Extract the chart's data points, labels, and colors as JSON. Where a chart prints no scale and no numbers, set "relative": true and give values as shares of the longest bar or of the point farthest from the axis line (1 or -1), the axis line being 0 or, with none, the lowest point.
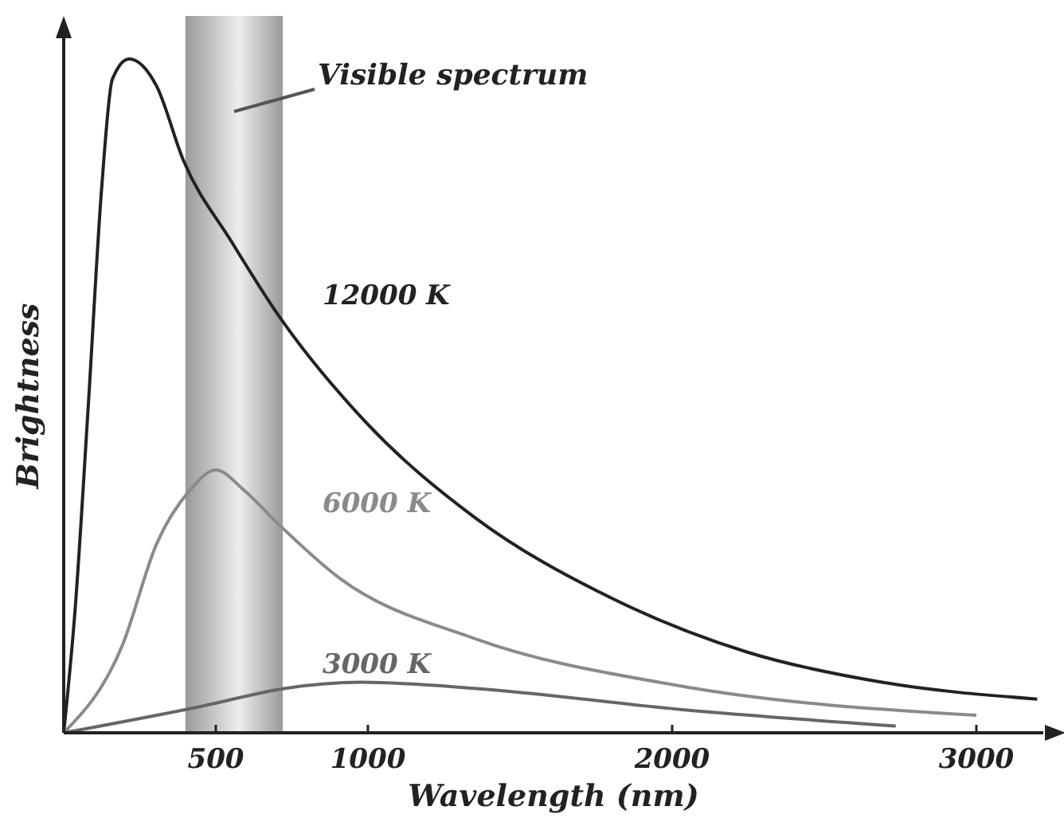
{
  "chart_data": {
    "type": "line",
    "xlabel": "Wavelength (nm)",
    "ylabel": "Brightness",
    "relative": true,
    "xlim": [
      0,
      3220
    ],
    "xticks": [
      500,
      1000,
      2000,
      3000
    ],
    "tick_labels": "x",
    "marker": "none",
    "line_style": "solid",
    "bands": [
      {
        "axis": "x",
        "from": 400,
        "to": 720,
        "label": "Visible spectrum",
        "color": "#9a9a9a"
      }
    ],
    "series": [
      {
        "name": "12000 K",
        "color": "#222222",
        "x": [
          0,
          37,
          80,
          125,
          160,
          215,
          305,
          393,
          550,
          705,
          995,
          1350,
          1800,
          2245,
          2690,
          3200
        ],
        "values": [
          0,
          0.18,
          0.48,
          0.81,
          0.97,
          1,
          0.96,
          0.85,
          0.73,
          0.62,
          0.46,
          0.32,
          0.2,
          0.12,
          0.075,
          0.05
        ]
      },
      {
        "name": "6000 K",
        "color": "#8a8a8a",
        "x": [
          0,
          193,
          305,
          415,
          500,
          593,
          705,
          905,
          1350,
          2020,
          3000
        ],
        "values": [
          0,
          0.13,
          0.28,
          0.36,
          0.39,
          0.36,
          0.31,
          0.23,
          0.14,
          0.07,
          0.026
        ]
      },
      {
        "name": "3000 K",
        "color": "#666666",
        "x": [
          0,
          460,
          728,
          975,
          1350,
          2020,
          2735
        ],
        "values": [
          0,
          0.04,
          0.066,
          0.075,
          0.066,
          0.035,
          0.01
        ]
      }
    ]
  }
}
